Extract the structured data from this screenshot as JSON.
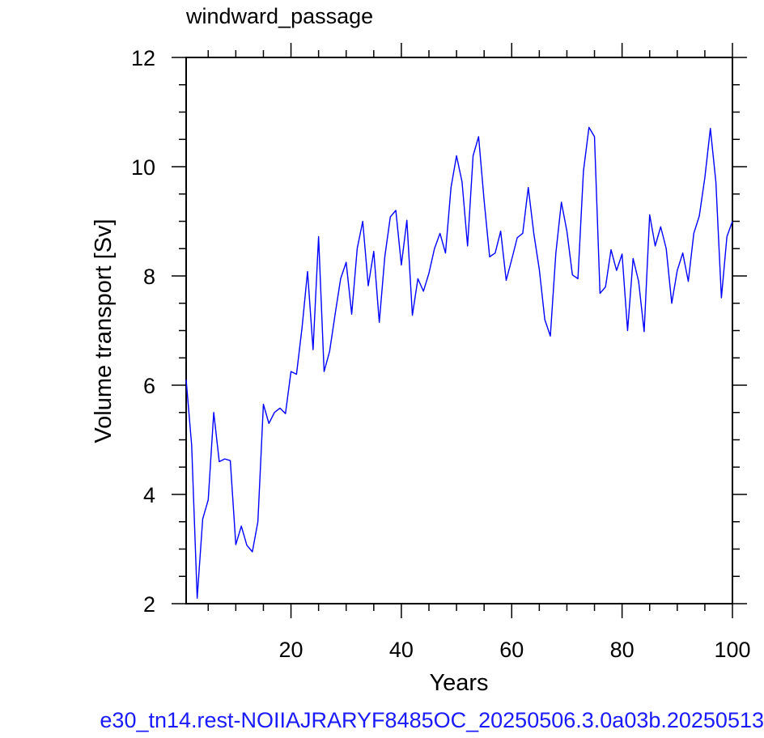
{
  "chart_data": {
    "type": "line",
    "title": "windward_passage",
    "xlabel": "Years",
    "ylabel": "Volume transport [Sv]",
    "xlim": [
      1,
      100
    ],
    "ylim": [
      2,
      12
    ],
    "x_major_ticks": [
      20,
      40,
      60,
      80,
      100
    ],
    "x_minor_step": 5,
    "y_major_ticks": [
      2,
      4,
      6,
      8,
      10,
      12
    ],
    "y_minor_step": 0.5,
    "x_tick_labels": [
      "20",
      "40",
      "60",
      "80",
      "100"
    ],
    "y_tick_labels": [
      "2",
      "4",
      "6",
      "8",
      "10",
      "12"
    ],
    "grid": false,
    "series": [
      {
        "color": "#0000ff",
        "x": [
          1,
          2,
          3,
          4,
          5,
          6,
          7,
          8,
          9,
          10,
          11,
          12,
          13,
          14,
          15,
          16,
          17,
          18,
          19,
          20,
          21,
          22,
          23,
          24,
          25,
          26,
          27,
          28,
          29,
          30,
          31,
          32,
          33,
          34,
          35,
          36,
          37,
          38,
          39,
          40,
          41,
          42,
          43,
          44,
          45,
          46,
          47,
          48,
          49,
          50,
          51,
          52,
          53,
          54,
          55,
          56,
          57,
          58,
          59,
          60,
          61,
          62,
          63,
          64,
          65,
          66,
          67,
          68,
          69,
          70,
          71,
          72,
          73,
          74,
          75,
          76,
          77,
          78,
          79,
          80,
          81,
          82,
          83,
          84,
          85,
          86,
          87,
          88,
          89,
          90,
          91,
          92,
          93,
          94,
          95,
          96,
          97,
          98,
          99,
          100
        ],
        "y": [
          6.1,
          4.9,
          2.1,
          3.55,
          3.9,
          5.5,
          4.6,
          4.65,
          4.62,
          3.08,
          3.42,
          3.07,
          2.95,
          3.5,
          5.65,
          5.3,
          5.5,
          5.58,
          5.48,
          6.25,
          6.2,
          7.05,
          8.08,
          6.65,
          8.72,
          6.25,
          6.62,
          7.3,
          7.95,
          8.25,
          7.3,
          8.5,
          9.0,
          7.82,
          8.45,
          7.15,
          8.35,
          9.08,
          9.2,
          8.2,
          9.02,
          7.28,
          7.95,
          7.72,
          8.05,
          8.5,
          8.78,
          8.42,
          9.62,
          10.2,
          9.72,
          8.55,
          10.2,
          10.55,
          9.38,
          8.35,
          8.42,
          8.82,
          7.92,
          8.3,
          8.7,
          8.78,
          9.62,
          8.78,
          8.12,
          7.2,
          6.9,
          8.42,
          9.35,
          8.82,
          8.02,
          7.95,
          9.92,
          10.72,
          10.55,
          7.68,
          7.8,
          8.48,
          8.1,
          8.4,
          7.0,
          8.32,
          7.9,
          6.98,
          9.12,
          8.55,
          8.9,
          8.5,
          7.5,
          8.1,
          8.42,
          7.9,
          8.78,
          9.1,
          9.8,
          10.7,
          9.72,
          7.6,
          8.72,
          9.0
        ]
      }
    ]
  },
  "footer": {
    "case_label": "e30_tn14.rest-NOIIAJRARYF8485OC_20250506.3.0a03b.20250513"
  }
}
